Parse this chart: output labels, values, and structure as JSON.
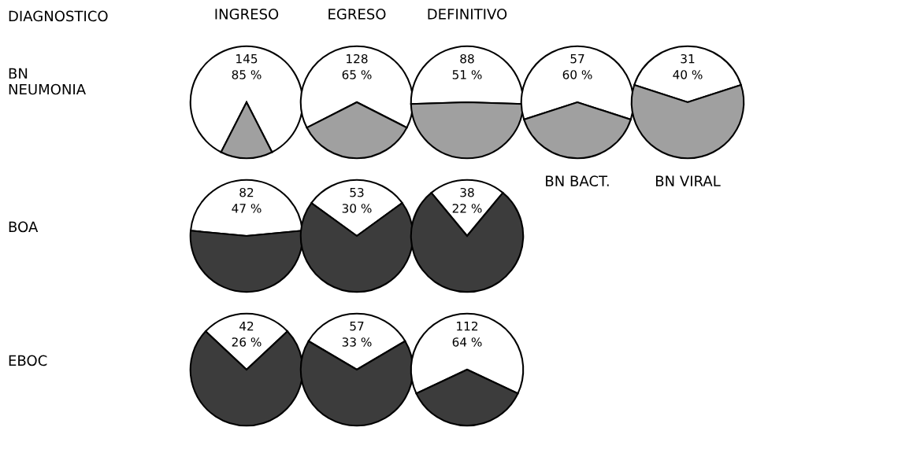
{
  "chart_data": [
    {
      "type": "other",
      "annotations": [
        "DIAGNOSTICO",
        "BN\nNEUMONIA",
        "BOA",
        "EBOC"
      ]
    },
    {
      "type": "pie",
      "title": "INGRESO",
      "categories": [
        null,
        null
      ],
      "values": [
        85,
        15
      ],
      "colors": [
        "#ffffff",
        "#a0a0a0"
      ],
      "value_labels": [
        "85 %",
        null
      ],
      "annotations": [
        "145"
      ]
    },
    {
      "type": "pie",
      "title": "EGRESO",
      "categories": [
        null,
        null
      ],
      "values": [
        65,
        35
      ],
      "colors": [
        "#ffffff",
        "#a0a0a0"
      ],
      "value_labels": [
        "65 %",
        null
      ],
      "annotations": [
        "128"
      ]
    },
    {
      "type": "pie",
      "title": "DEFINITIVO",
      "categories": [
        null,
        null
      ],
      "values": [
        51,
        49
      ],
      "colors": [
        "#ffffff",
        "#a0a0a0"
      ],
      "value_labels": [
        "51 %",
        null
      ],
      "annotations": [
        "88"
      ]
    },
    {
      "type": "pie",
      "xlabel": "BN BACT.",
      "categories": [
        null,
        null
      ],
      "values": [
        60,
        40
      ],
      "colors": [
        "#ffffff",
        "#a0a0a0"
      ],
      "value_labels": [
        "60 %",
        null
      ],
      "annotations": [
        "57"
      ]
    },
    {
      "type": "pie",
      "xlabel": "BN VIRAL",
      "categories": [
        null,
        null
      ],
      "values": [
        40,
        60
      ],
      "colors": [
        "#ffffff",
        "#a0a0a0"
      ],
      "value_labels": [
        "40 %",
        null
      ],
      "annotations": [
        "31"
      ]
    },
    {
      "type": "pie",
      "categories": [
        null,
        null
      ],
      "values": [
        47,
        53
      ],
      "colors": [
        "#ffffff",
        "#3c3c3c"
      ],
      "value_labels": [
        "47 %",
        null
      ],
      "annotations": [
        "82"
      ]
    },
    {
      "type": "pie",
      "categories": [
        null,
        null
      ],
      "values": [
        30,
        70
      ],
      "colors": [
        "#ffffff",
        "#3c3c3c"
      ],
      "value_labels": [
        "30 %",
        null
      ],
      "annotations": [
        "53"
      ]
    },
    {
      "type": "pie",
      "categories": [
        null,
        null
      ],
      "values": [
        22,
        78
      ],
      "colors": [
        "#ffffff",
        "#3c3c3c"
      ],
      "value_labels": [
        "22 %",
        null
      ],
      "annotations": [
        "38"
      ]
    },
    {
      "type": "pie",
      "categories": [
        null,
        null
      ],
      "values": [
        26,
        74
      ],
      "colors": [
        "#ffffff",
        "#3c3c3c"
      ],
      "value_labels": [
        "26 %",
        null
      ],
      "annotations": [
        "42"
      ]
    },
    {
      "type": "pie",
      "categories": [
        null,
        null
      ],
      "values": [
        33,
        67
      ],
      "colors": [
        "#ffffff",
        "#3c3c3c"
      ],
      "value_labels": [
        "33 %",
        null
      ],
      "annotations": [
        "57"
      ]
    },
    {
      "type": "pie",
      "categories": [
        null,
        null
      ],
      "values": [
        64,
        36
      ],
      "colors": [
        "#ffffff",
        "#3c3c3c"
      ],
      "value_labels": [
        "64 %",
        null
      ],
      "annotations": [
        "112"
      ]
    }
  ]
}
